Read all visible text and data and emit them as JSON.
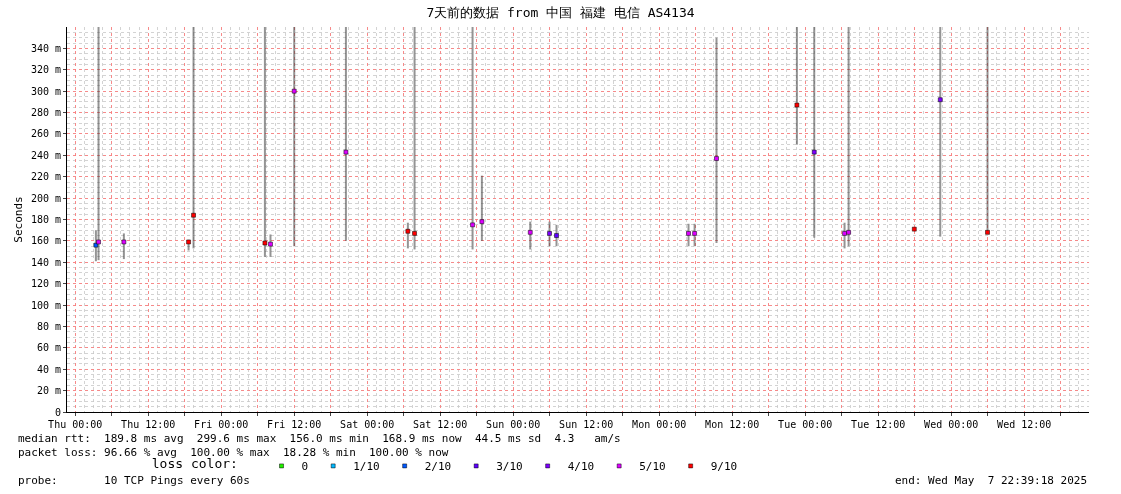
{
  "chart_data": {
    "type": "scatter",
    "title": "7天前的数据 from 中国 福建 电信 AS4134",
    "ylabel": "Seconds",
    "legend_title": "loss color:",
    "legend": "bottom",
    "grid": true,
    "marker": "square",
    "xlim": [
      "2025-04-30T22:39",
      "2025-05-07T22:39"
    ],
    "xticks": [
      {
        "value": "2025-05-01T00:00",
        "label": "Thu 00:00"
      },
      {
        "value": "2025-05-01T06:00",
        "label": null
      },
      {
        "value": "2025-05-01T12:00",
        "label": "Thu 12:00"
      },
      {
        "value": "2025-05-01T18:00",
        "label": null
      },
      {
        "value": "2025-05-02T00:00",
        "label": "Fri 00:00"
      },
      {
        "value": "2025-05-02T06:00",
        "label": null
      },
      {
        "value": "2025-05-02T12:00",
        "label": "Fri 12:00"
      },
      {
        "value": "2025-05-02T18:00",
        "label": null
      },
      {
        "value": "2025-05-03T00:00",
        "label": "Sat 00:00"
      },
      {
        "value": "2025-05-03T06:00",
        "label": null
      },
      {
        "value": "2025-05-03T12:00",
        "label": "Sat 12:00"
      },
      {
        "value": "2025-05-03T18:00",
        "label": null
      },
      {
        "value": "2025-05-04T00:00",
        "label": "Sun 00:00"
      },
      {
        "value": "2025-05-04T06:00",
        "label": null
      },
      {
        "value": "2025-05-04T12:00",
        "label": "Sun 12:00"
      },
      {
        "value": "2025-05-04T18:00",
        "label": null
      },
      {
        "value": "2025-05-05T00:00",
        "label": "Mon 00:00"
      },
      {
        "value": "2025-05-05T06:00",
        "label": null
      },
      {
        "value": "2025-05-05T12:00",
        "label": "Mon 12:00"
      },
      {
        "value": "2025-05-05T18:00",
        "label": null
      },
      {
        "value": "2025-05-06T00:00",
        "label": "Tue 00:00"
      },
      {
        "value": "2025-05-06T06:00",
        "label": null
      },
      {
        "value": "2025-05-06T12:00",
        "label": "Tue 12:00"
      },
      {
        "value": "2025-05-06T18:00",
        "label": null
      },
      {
        "value": "2025-05-07T00:00",
        "label": "Wed 00:00"
      },
      {
        "value": "2025-05-07T06:00",
        "label": null
      },
      {
        "value": "2025-05-07T12:00",
        "label": "Wed 12:00"
      },
      {
        "value": "2025-05-07T18:00",
        "label": null
      }
    ],
    "ylim": [
      0,
      360
    ],
    "yticks": [
      0,
      {
        "value": 20,
        "label": "20 m"
      },
      {
        "value": 40,
        "label": "40 m"
      },
      {
        "value": 60,
        "label": "60 m"
      },
      {
        "value": 80,
        "label": "80 m"
      },
      {
        "value": 100,
        "label": "100 m"
      },
      {
        "value": 120,
        "label": "120 m"
      },
      {
        "value": 140,
        "label": "140 m"
      },
      {
        "value": 160,
        "label": "160 m"
      },
      {
        "value": 180,
        "label": "180 m"
      },
      {
        "value": 200,
        "label": "200 m"
      },
      {
        "value": 220,
        "label": "220 m"
      },
      {
        "value": 240,
        "label": "240 m"
      },
      {
        "value": 260,
        "label": "260 m"
      },
      {
        "value": 280,
        "label": "280 m"
      },
      {
        "value": 300,
        "label": "300 m"
      },
      {
        "value": 320,
        "label": "320 m"
      },
      {
        "value": 340,
        "label": "340 m"
      }
    ],
    "series": [
      {
        "name": "0",
        "color": "#22ee00"
      },
      {
        "name": "1/10",
        "color": "#00b8ff"
      },
      {
        "name": "2/10",
        "color": "#0059ff",
        "x": [
          "2025-05-01T03:24"
        ],
        "values": [
          156
        ],
        "errors": [
          [
            141,
            170
          ]
        ]
      },
      {
        "name": "3/10",
        "color": "#5e00ff",
        "x": [
          "2025-05-04T07:07"
        ],
        "values": [
          165
        ],
        "errors": [
          [
            155,
            175
          ]
        ]
      },
      {
        "name": "4/10",
        "color": "#7e00ff",
        "x": [
          "2025-05-04T05:58",
          "2025-05-06T01:29",
          "2025-05-06T22:12"
        ],
        "values": [
          167,
          243,
          292
        ],
        "errors": [
          [
            155,
            178
          ],
          [
            163,
            360
          ],
          [
            164,
            360
          ]
        ]
      },
      {
        "name": "5/10",
        "color": "#dd00ff",
        "x": [
          "2025-05-01T03:50",
          "2025-05-01T08:00",
          "2025-05-02T08:06",
          "2025-05-02T12:00",
          "2025-05-02T20:30",
          "2025-05-03T17:19",
          "2025-05-03T18:51",
          "2025-05-04T02:48",
          "2025-05-05T04:49",
          "2025-05-05T05:49",
          "2025-05-05T09:25",
          "2025-05-06T06:28",
          "2025-05-06T07:08"
        ],
        "values": [
          159,
          159,
          157,
          300,
          243,
          175,
          178,
          168,
          167,
          167,
          237,
          167,
          168
        ],
        "errors": [
          [
            142,
            360
          ],
          [
            143,
            167
          ],
          [
            145,
            166
          ],
          [
            155,
            360
          ],
          [
            160,
            360
          ],
          [
            152,
            360
          ],
          [
            160,
            221
          ],
          [
            152,
            178
          ],
          [
            155,
            176
          ],
          [
            155,
            176
          ],
          [
            158,
            350
          ],
          [
            153,
            177
          ],
          [
            155,
            360
          ]
        ]
      },
      {
        "name": "9/10",
        "color": "#ff0000",
        "x": [
          "2025-05-01T18:38",
          "2025-05-01T19:27",
          "2025-05-02T07:11",
          "2025-05-03T06:41",
          "2025-05-03T07:47",
          "2025-05-05T22:38",
          "2025-05-06T17:56",
          "2025-05-07T05:58"
        ],
        "values": [
          159,
          184,
          158,
          169,
          167,
          287,
          171,
          168
        ],
        "errors": [
          [
            151,
            161
          ],
          [
            153,
            360
          ],
          [
            145,
            360
          ],
          [
            153,
            177
          ],
          [
            152,
            360
          ],
          [
            250,
            360
          ],
          null,
          [
            167,
            360
          ]
        ]
      }
    ],
    "annotations": [
      "median rtt:  189.8 ms avg  299.6 ms max  156.0 ms min  168.9 ms now  44.5 ms sd  4.3   am/s",
      "packet loss: 96.66 % avg  100.00 % max  18.28 % min  100.00 % now",
      "probe:       10 TCP Pings every 60s",
      "end: Wed May  7 22:39:18 2025"
    ]
  }
}
